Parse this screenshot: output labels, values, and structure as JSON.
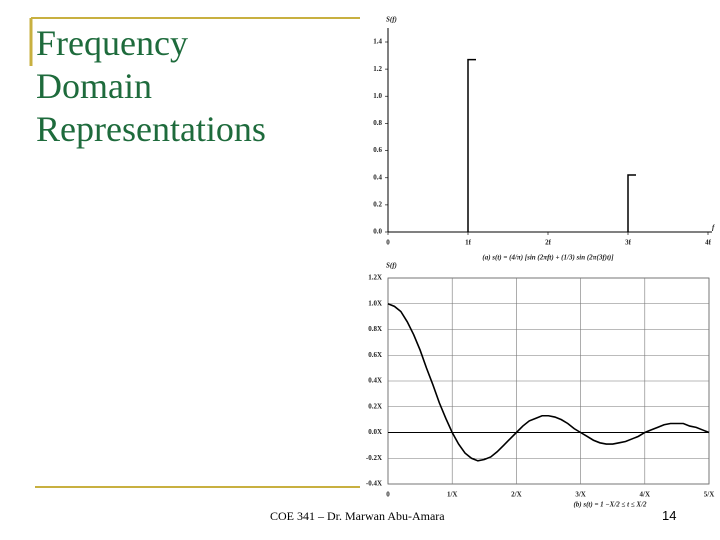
{
  "slide": {
    "title": [
      "Frequency",
      "Domain",
      "Representations"
    ],
    "footer": "COE 341 – Dr. Marwan Abu-Amara",
    "page_number": "14"
  },
  "chart_data": [
    {
      "type": "stem",
      "y_label": "S(f)",
      "x_label": "f",
      "caption": "(a) s(t) = (4/π) [sin (2πft) + (1/3) sin (2π(3f)t)]",
      "x": [
        1,
        3
      ],
      "values": [
        1.27,
        0.42
      ],
      "color": "#000000",
      "xlim": [
        0,
        4
      ],
      "xticks": [
        0,
        {
          "value": 1,
          "label": "1f"
        },
        {
          "value": 2,
          "label": "2f"
        },
        {
          "value": 3,
          "label": "3f"
        },
        {
          "value": 4,
          "label": "4f"
        }
      ],
      "ylim": [
        0,
        1.4
      ],
      "yticks": [
        {
          "value": 0,
          "label": "0.0"
        },
        0.2,
        0.4,
        0.6,
        0.8,
        {
          "value": 1,
          "label": "1.0"
        },
        1.2,
        1.4
      ],
      "grid": false
    },
    {
      "type": "line",
      "y_label": "S(f)",
      "caption": "(b) s(t) = 1   −X/2 ≤ t ≤ X/2",
      "x": [
        0,
        0.1,
        0.2,
        0.3,
        0.4,
        0.5,
        0.6,
        0.7,
        0.8,
        0.9,
        1,
        1.1,
        1.2,
        1.3,
        1.4,
        1.5,
        1.6,
        1.7,
        1.8,
        1.9,
        2,
        2.1,
        2.2,
        2.3,
        2.4,
        2.5,
        2.6,
        2.7,
        2.8,
        2.9,
        3,
        3.1,
        3.2,
        3.3,
        3.4,
        3.5,
        3.6,
        3.7,
        3.8,
        3.9,
        4,
        4.1,
        4.2,
        4.3,
        4.4,
        4.5,
        4.6,
        4.7,
        4.8,
        4.9,
        5
      ],
      "values": [
        1,
        0.98,
        0.94,
        0.86,
        0.76,
        0.64,
        0.5,
        0.37,
        0.23,
        0.11,
        0,
        -0.09,
        -0.16,
        -0.2,
        -0.22,
        -0.21,
        -0.19,
        -0.15,
        -0.1,
        -0.05,
        0,
        0.05,
        0.09,
        0.11,
        0.13,
        0.13,
        0.12,
        0.1,
        0.07,
        0.03,
        0,
        -0.03,
        -0.06,
        -0.08,
        -0.09,
        -0.09,
        -0.08,
        -0.07,
        -0.05,
        -0.03,
        0,
        0.02,
        0.04,
        0.06,
        0.07,
        0.07,
        0.07,
        0.05,
        0.04,
        0.02,
        0
      ],
      "color": "#000000",
      "xlim": [
        0,
        5
      ],
      "xticks": [
        0,
        {
          "value": 1,
          "label": "1/X"
        },
        {
          "value": 2,
          "label": "2/X"
        },
        {
          "value": 3,
          "label": "3/X"
        },
        {
          "value": 4,
          "label": "4/X"
        },
        {
          "value": 5,
          "label": "5/X"
        }
      ],
      "ylim": [
        -0.4,
        1.2
      ],
      "yticks": [
        {
          "value": -0.4,
          "label": "-0.4X"
        },
        {
          "value": -0.2,
          "label": "-0.2X"
        },
        {
          "value": 0,
          "label": "0.0X"
        },
        {
          "value": 0.2,
          "label": "0.2X"
        },
        {
          "value": 0.4,
          "label": "0.4X"
        },
        {
          "value": 0.6,
          "label": "0.6X"
        },
        {
          "value": 0.8,
          "label": "0.8X"
        },
        {
          "value": 1,
          "label": "1.0X"
        },
        {
          "value": 1.2,
          "label": "1.2X"
        }
      ],
      "grid": true
    }
  ]
}
